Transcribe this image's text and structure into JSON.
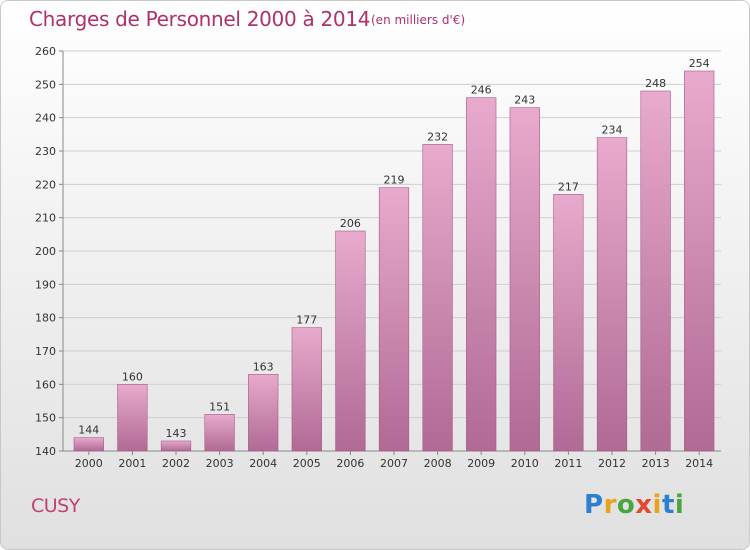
{
  "header": {
    "title": "Charges de Personnel 2000 à 2014",
    "subtitle": "(en milliers d'€)"
  },
  "footer": {
    "place": "CUSY",
    "logo_letters": [
      {
        "ch": "P",
        "color": "#2d7fd0"
      },
      {
        "ch": "r",
        "color": "#e8a21b"
      },
      {
        "ch": "o",
        "color": "#49a63d"
      },
      {
        "ch": "x",
        "color": "#e04a2e"
      },
      {
        "ch": "i",
        "color": "#e8a21b"
      },
      {
        "ch": "t",
        "color": "#2d7fd0"
      },
      {
        "ch": "i",
        "color": "#49a63d"
      }
    ]
  },
  "colors": {
    "bar_light": "#e8aacd",
    "bar_dark": "#b06a94",
    "bar_edge": "#a85a88",
    "title": "#b0306a",
    "grid": "#cfcfcf"
  },
  "chart_data": {
    "type": "bar",
    "title": "Charges de Personnel 2000 à 2014",
    "subtitle": "(en milliers d'€)",
    "xlabel": "",
    "ylabel": "",
    "categories": [
      "2000",
      "2001",
      "2002",
      "2003",
      "2004",
      "2005",
      "2006",
      "2007",
      "2008",
      "2009",
      "2010",
      "2011",
      "2012",
      "2013",
      "2014"
    ],
    "values": [
      144,
      160,
      143,
      151,
      163,
      177,
      206,
      219,
      232,
      246,
      243,
      217,
      234,
      248,
      254
    ],
    "data_labels": [
      "144",
      "160",
      "143",
      "151",
      "163",
      "177",
      "206",
      "219",
      "232",
      "246",
      "243",
      "217",
      "234",
      "248",
      "254"
    ],
    "ylim": [
      140,
      260
    ],
    "yticks": [
      140,
      150,
      160,
      170,
      180,
      190,
      200,
      210,
      220,
      230,
      240,
      250,
      260
    ],
    "ytick_labels": [
      "140",
      "150",
      "160",
      "170",
      "180",
      "190",
      "200",
      "210",
      "220",
      "230",
      "240",
      "250",
      "260"
    ],
    "grid": true,
    "legend": "none"
  }
}
